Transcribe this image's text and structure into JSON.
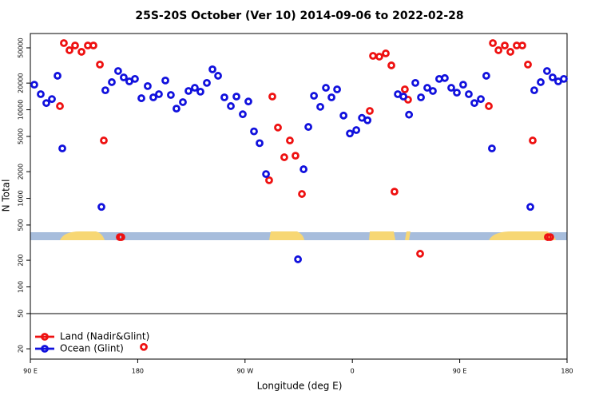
{
  "chart_data": {
    "type": "scatter",
    "title": "25S-20S October (Ver 10)   2014-09-06 to 2022-02-28",
    "xlabel": "Longitude (deg E)",
    "ylabel": "N Total",
    "log_y": true,
    "legend": "lower left",
    "xlim": [
      90,
      540
    ],
    "xticks": [
      {
        "value": 90,
        "label": "90 E"
      },
      180,
      {
        "value": 270,
        "label": "90 W"
      },
      {
        "value": 360,
        "label": "0"
      },
      {
        "value": 450,
        "label": "90 E"
      },
      {
        "value": 540,
        "label": "180"
      }
    ],
    "ylim": [
      15.3,
      72600
    ],
    "yticks": [
      20,
      50,
      100,
      200,
      500,
      1000,
      2000,
      5000,
      10000,
      20000,
      50000
    ],
    "series": [
      {
        "name": "Land (Nadir&Glint)",
        "color": "#ee1111",
        "x": [
          114.8,
          118.1,
          122.8,
          127.5,
          132.9,
          138.2,
          142.9,
          148.3,
          151.6,
          165,
          166.3,
          185.1,
          292.9,
          290.2,
          297.6,
          302.9,
          307.6,
          312.3,
          317.7,
          377.3,
          382.6,
          388,
          392.7,
          395.3,
          404,
          406.7,
          374.6,
          416.8,
          474.4,
          477.8,
          482.5,
          487.8,
          492.5,
          497.8,
          502.5,
          507.2,
          511.2,
          523.9,
          525.9
        ],
        "values": [
          11000,
          56600,
          47000,
          53200,
          45100,
          53200,
          53200,
          32400,
          4500,
          365,
          365,
          21,
          14100,
          1600,
          6300,
          2910,
          4500,
          3030,
          1120,
          40600,
          39800,
          43300,
          31700,
          1190,
          17000,
          13000,
          9700,
          237,
          11000,
          56600,
          47000,
          53200,
          45100,
          53200,
          53200,
          32400,
          4500,
          365,
          365
        ]
      },
      {
        "name": "Ocean (Glint)",
        "color": "#1111dd",
        "x": [
          93.3,
          98.7,
          103.4,
          108.1,
          112.8,
          116.8,
          149.6,
          152.9,
          158.3,
          163.6,
          168.3,
          173,
          177.7,
          183.1,
          188.4,
          193.1,
          197.8,
          203.2,
          207.8,
          212.5,
          217.9,
          222.6,
          227.9,
          232.6,
          238,
          242.7,
          247.4,
          252.7,
          258.1,
          262.8,
          268.1,
          272.8,
          277.5,
          282.2,
          287.6,
          314.4,
          319.1,
          323.1,
          327.8,
          333.1,
          337.8,
          342.5,
          347.2,
          352.6,
          357.9,
          363.3,
          368,
          372.7,
          398.1,
          402.8,
          407.5,
          412.8,
          417.5,
          422.8,
          427.5,
          432.8,
          437.5,
          442.9,
          447.6,
          452.9,
          457.6,
          462.3,
          467.7,
          472.3,
          477,
          509.2,
          512.5,
          517.9,
          523.2,
          527.9,
          532.6,
          537.3
        ],
        "values": [
          19200,
          15000,
          11900,
          13200,
          24200,
          3660,
          800,
          16600,
          20500,
          27400,
          23200,
          20900,
          22300,
          13500,
          18500,
          13800,
          15000,
          21400,
          14700,
          10300,
          12200,
          16300,
          17700,
          16000,
          20100,
          28600,
          24200,
          13800,
          11000,
          14100,
          8900,
          12400,
          5700,
          4200,
          1880,
          205,
          2130,
          6400,
          14400,
          10800,
          17700,
          13800,
          17000,
          8600,
          5400,
          5900,
          8100,
          7600,
          15000,
          14100,
          8800,
          20100,
          13800,
          17700,
          16300,
          22300,
          22800,
          17700,
          15600,
          19200,
          15000,
          11900,
          13200,
          24200,
          3660,
          800,
          16600,
          20500,
          27400,
          23200,
          20900,
          22300
        ]
      }
    ]
  }
}
